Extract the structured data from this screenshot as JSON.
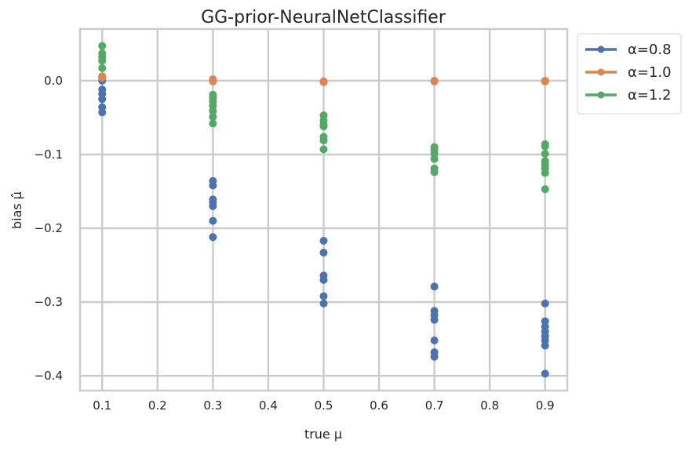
{
  "chart_data": {
    "type": "scatter",
    "title": "GG-prior-NeuralNetClassifier",
    "xlabel": "true μ",
    "ylabel": "bias μ̂",
    "xlim": [
      0.06,
      0.94
    ],
    "ylim": [
      -0.42,
      0.07
    ],
    "xticks": [
      "0.1",
      "0.2",
      "0.3",
      "0.4",
      "0.5",
      "0.6",
      "0.7",
      "0.8",
      "0.9"
    ],
    "xtick_values": [
      0.1,
      0.2,
      0.3,
      0.4,
      0.5,
      0.6,
      0.7,
      0.8,
      0.9
    ],
    "yticks": [
      "0.0",
      "−0.1",
      "−0.2",
      "−0.3",
      "−0.4"
    ],
    "ytick_values": [
      0.0,
      -0.1,
      -0.2,
      -0.3,
      -0.4
    ],
    "grid": true,
    "legend_position": "outside-top-right",
    "series": [
      {
        "name": "α=0.8",
        "color": "#4c72b0",
        "points": [
          [
            0.1,
            0.005
          ],
          [
            0.1,
            0.0
          ],
          [
            0.1,
            -0.012
          ],
          [
            0.1,
            -0.018
          ],
          [
            0.1,
            -0.025
          ],
          [
            0.1,
            -0.036
          ],
          [
            0.1,
            -0.043
          ],
          [
            0.3,
            -0.136
          ],
          [
            0.3,
            -0.142
          ],
          [
            0.3,
            -0.161
          ],
          [
            0.3,
            -0.165
          ],
          [
            0.3,
            -0.17
          ],
          [
            0.3,
            -0.19
          ],
          [
            0.3,
            -0.212
          ],
          [
            0.5,
            -0.217
          ],
          [
            0.5,
            -0.233
          ],
          [
            0.5,
            -0.264
          ],
          [
            0.5,
            -0.27
          ],
          [
            0.5,
            -0.292
          ],
          [
            0.5,
            -0.302
          ],
          [
            0.7,
            -0.279
          ],
          [
            0.7,
            -0.312
          ],
          [
            0.7,
            -0.318
          ],
          [
            0.7,
            -0.324
          ],
          [
            0.7,
            -0.352
          ],
          [
            0.7,
            -0.368
          ],
          [
            0.7,
            -0.374
          ],
          [
            0.9,
            -0.302
          ],
          [
            0.9,
            -0.326
          ],
          [
            0.9,
            -0.333
          ],
          [
            0.9,
            -0.34
          ],
          [
            0.9,
            -0.346
          ],
          [
            0.9,
            -0.352
          ],
          [
            0.9,
            -0.359
          ],
          [
            0.9,
            -0.397
          ]
        ]
      },
      {
        "name": "α=1.0",
        "color": "#dd8452",
        "points": [
          [
            0.1,
            0.006
          ],
          [
            0.1,
            0.004
          ],
          [
            0.3,
            0.002
          ],
          [
            0.3,
            0.0
          ],
          [
            0.3,
            -0.001
          ],
          [
            0.5,
            -0.001
          ],
          [
            0.5,
            -0.002
          ],
          [
            0.7,
            0.0
          ],
          [
            0.7,
            -0.001
          ],
          [
            0.9,
            0.0
          ],
          [
            0.9,
            -0.001
          ]
        ]
      },
      {
        "name": "α=1.2",
        "color": "#55a868",
        "points": [
          [
            0.1,
            0.047
          ],
          [
            0.1,
            0.037
          ],
          [
            0.1,
            0.032
          ],
          [
            0.1,
            0.027
          ],
          [
            0.1,
            0.017
          ],
          [
            0.3,
            -0.019
          ],
          [
            0.3,
            -0.023
          ],
          [
            0.3,
            -0.028
          ],
          [
            0.3,
            -0.034
          ],
          [
            0.3,
            -0.041
          ],
          [
            0.3,
            -0.049
          ],
          [
            0.3,
            -0.058
          ],
          [
            0.5,
            -0.047
          ],
          [
            0.5,
            -0.054
          ],
          [
            0.5,
            -0.059
          ],
          [
            0.5,
            -0.062
          ],
          [
            0.5,
            -0.076
          ],
          [
            0.5,
            -0.081
          ],
          [
            0.5,
            -0.093
          ],
          [
            0.7,
            -0.09
          ],
          [
            0.7,
            -0.094
          ],
          [
            0.7,
            -0.099
          ],
          [
            0.7,
            -0.106
          ],
          [
            0.7,
            -0.119
          ],
          [
            0.7,
            -0.124
          ],
          [
            0.9,
            -0.086
          ],
          [
            0.9,
            -0.089
          ],
          [
            0.9,
            -0.099
          ],
          [
            0.9,
            -0.109
          ],
          [
            0.9,
            -0.114
          ],
          [
            0.9,
            -0.119
          ],
          [
            0.9,
            -0.125
          ],
          [
            0.9,
            -0.147
          ]
        ]
      }
    ]
  }
}
